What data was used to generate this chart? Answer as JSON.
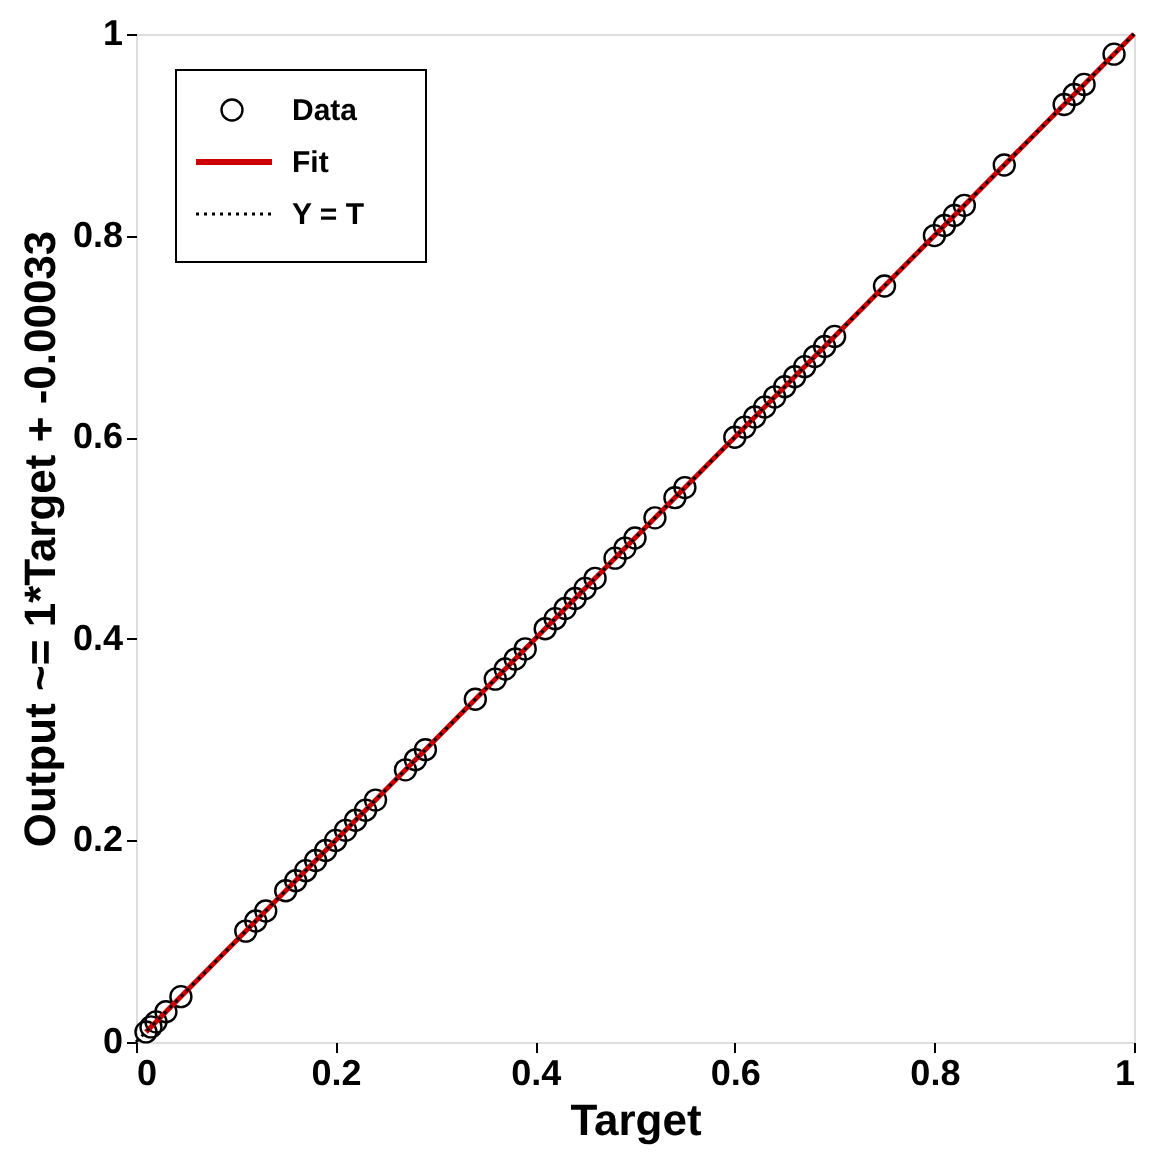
{
  "chart_data": {
    "type": "scatter",
    "xlabel": "Target",
    "ylabel": "Output ~= 1*Target + -0.00033",
    "xlim": [
      0,
      1
    ],
    "ylim": [
      0,
      1
    ],
    "xticks": [
      0,
      0.2,
      0.4,
      0.6,
      0.8,
      1
    ],
    "yticks": [
      0,
      0.2,
      0.4,
      0.6,
      0.8,
      1
    ],
    "grid": false,
    "legend": "top left",
    "series": [
      {
        "name": "Data",
        "color": "#000000",
        "marker": "circle",
        "x": [
          0.01,
          0.015,
          0.02,
          0.03,
          0.045,
          0.11,
          0.12,
          0.13,
          0.15,
          0.16,
          0.17,
          0.18,
          0.19,
          0.2,
          0.21,
          0.22,
          0.23,
          0.24,
          0.27,
          0.28,
          0.29,
          0.34,
          0.36,
          0.37,
          0.38,
          0.39,
          0.41,
          0.42,
          0.43,
          0.44,
          0.45,
          0.46,
          0.48,
          0.49,
          0.5,
          0.52,
          0.54,
          0.55,
          0.6,
          0.61,
          0.62,
          0.63,
          0.64,
          0.65,
          0.66,
          0.67,
          0.68,
          0.69,
          0.7,
          0.75,
          0.8,
          0.81,
          0.82,
          0.83,
          0.87,
          0.93,
          0.94,
          0.95,
          0.98
        ],
        "values": [
          0.01,
          0.015,
          0.02,
          0.03,
          0.045,
          0.11,
          0.12,
          0.13,
          0.15,
          0.16,
          0.17,
          0.18,
          0.19,
          0.2,
          0.21,
          0.22,
          0.23,
          0.24,
          0.27,
          0.28,
          0.29,
          0.34,
          0.36,
          0.37,
          0.38,
          0.39,
          0.41,
          0.42,
          0.43,
          0.44,
          0.45,
          0.46,
          0.48,
          0.49,
          0.5,
          0.52,
          0.54,
          0.55,
          0.6,
          0.61,
          0.62,
          0.63,
          0.64,
          0.65,
          0.66,
          0.67,
          0.68,
          0.69,
          0.7,
          0.75,
          0.8,
          0.81,
          0.82,
          0.83,
          0.87,
          0.93,
          0.94,
          0.95,
          0.98
        ]
      },
      {
        "name": "Fit",
        "type": "line",
        "color": "#cc0000",
        "line_style": "solid",
        "x": [
          0.01,
          1
        ],
        "values": [
          0.01,
          1
        ]
      },
      {
        "name": "Y = T",
        "type": "line",
        "color": "#000000",
        "line_style": "dotted",
        "x": [
          0,
          1
        ],
        "values": [
          0,
          1
        ]
      }
    ]
  }
}
